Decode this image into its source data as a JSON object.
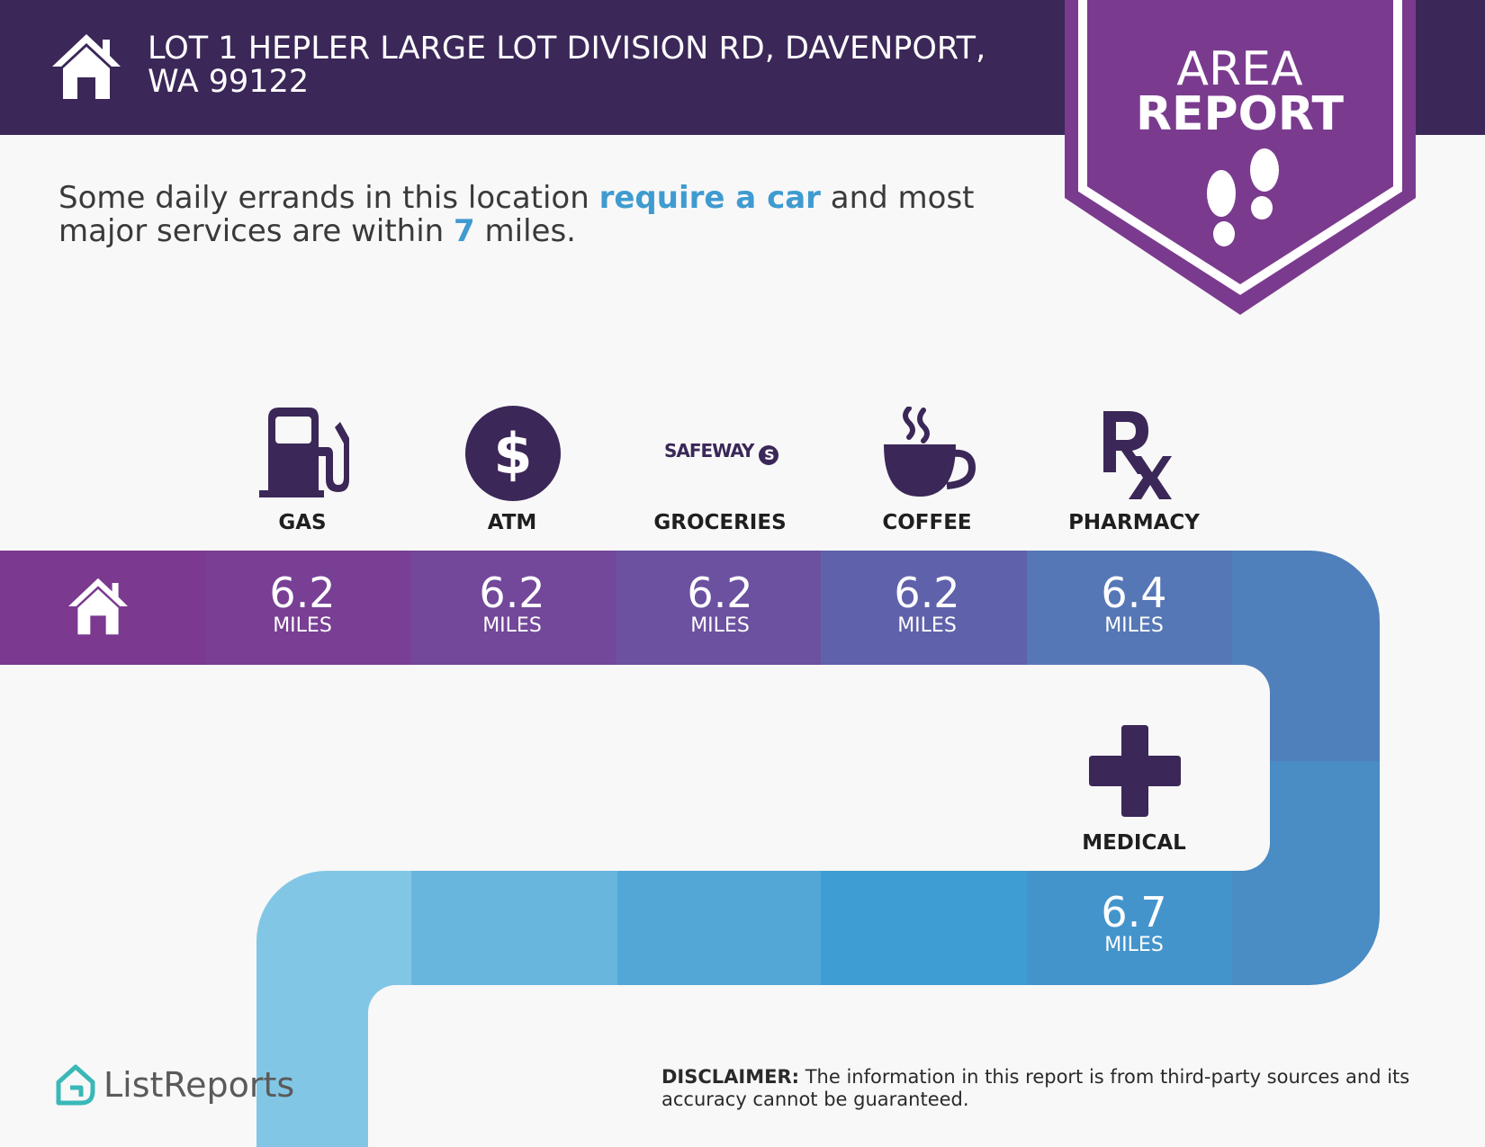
{
  "header": {
    "address": "LOT 1 HEPLER LARGE LOT DIVISION RD, DAVENPORT, WA 99122"
  },
  "banner": {
    "line1": "AREA",
    "line2": "REPORT"
  },
  "summary": {
    "part1": "Some daily errands in this location ",
    "highlight1": "require a car",
    "part2": " and most major services are within ",
    "highlight2": "7",
    "part3": " miles."
  },
  "amenities": [
    {
      "label": "GAS",
      "distance": "6.2",
      "unit": "MILES",
      "icon": "gas-pump-icon"
    },
    {
      "label": "ATM",
      "distance": "6.2",
      "unit": "MILES",
      "icon": "dollar-icon"
    },
    {
      "label": "GROCERIES",
      "distance": "6.2",
      "unit": "MILES",
      "icon": "safeway-logo",
      "logo_text": "SAFEWAY"
    },
    {
      "label": "COFFEE",
      "distance": "6.2",
      "unit": "MILES",
      "icon": "coffee-cup-icon"
    },
    {
      "label": "PHARMACY",
      "distance": "6.4",
      "unit": "MILES",
      "icon": "rx-icon"
    },
    {
      "label": "MEDICAL",
      "distance": "6.7",
      "unit": "MILES",
      "icon": "medical-cross-icon"
    }
  ],
  "footer": {
    "brand": "ListReports",
    "disclaimer_label": "DISCLAIMER:",
    "disclaimer_text": " The information in this report is from third-party sources and its accuracy cannot be guaranteed."
  },
  "colors": {
    "header_bg": "#3b2758",
    "banner_bg": "#7a3b8f",
    "highlight": "#3f9bd0",
    "icon_dark": "#3b2758"
  }
}
